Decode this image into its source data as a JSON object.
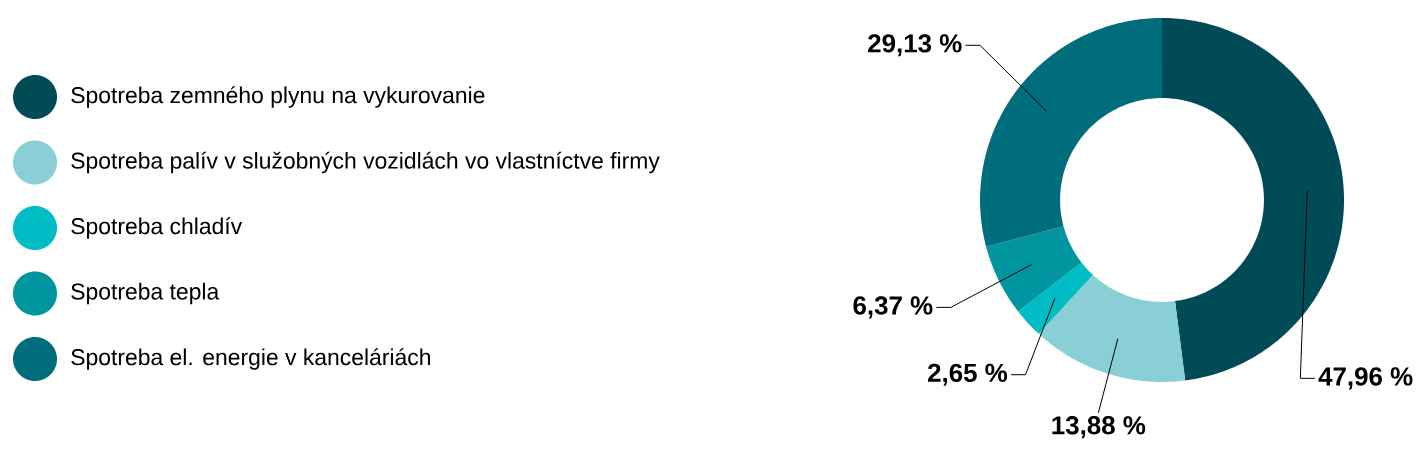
{
  "chart_data": {
    "type": "donut",
    "categories": [
      "Spotreba zemného plynu na vykurovanie",
      "Spotreba palív v služobných vozidlách vo vlastníctve firmy",
      "Spotreba chladív",
      "Spotreba tepla",
      "Spotreba el. energie v kanceláriách"
    ],
    "values": [
      47.96,
      13.88,
      2.65,
      6.37,
      29.13
    ],
    "colors": [
      "#004b55",
      "#8acfd6",
      "#00bcc5",
      "#00959f",
      "#006d7d"
    ],
    "value_labels": [
      "47,96 %",
      "13,88 %",
      "2,65 %",
      "6,37 %",
      "29,13 %"
    ],
    "legend": "left"
  }
}
